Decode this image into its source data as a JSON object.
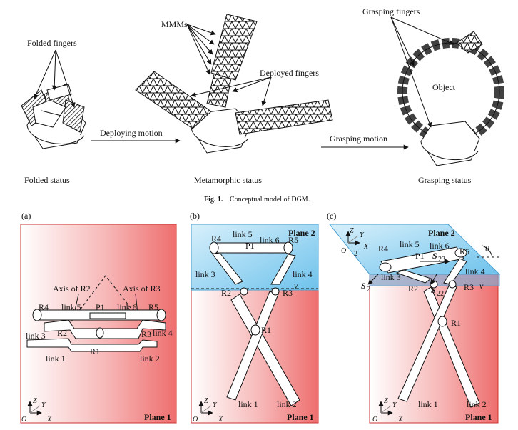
{
  "top": {
    "folded_fingers": "Folded fingers",
    "mmms": "MMMs",
    "deployed_fingers": "Deployed fingers",
    "grasping_fingers": "Grasping fingers",
    "object": "Object",
    "deploying_motion": "Deploying motion",
    "grasping_motion": "Grasping motion",
    "folded_status": "Folded status",
    "metamorphic_status": "Metamorphic status",
    "grasping_status": "Grasping status"
  },
  "caption": {
    "fig": "Fig. 1.",
    "text": "Conceptual model of DGM."
  },
  "panel_a": {
    "tag": "(a)",
    "axis_r2": "Axis of R2",
    "axis_r3": "Axis of R3",
    "r4": "R4",
    "link5": "link 5",
    "p1": "P1",
    "link6": "link 6",
    "r5": "R5",
    "link3": "link 3",
    "r2": "R2",
    "r3": "R3",
    "link4": "link 4",
    "r1": "R1",
    "link1": "link 1",
    "link2": "link 2",
    "z1": "Z",
    "y1": "Y",
    "o1": "O",
    "x1": "X",
    "sub1": "1",
    "plane": "Plane 1"
  },
  "panel_b": {
    "tag": "(b)",
    "link5": "link 5",
    "plane2": "Plane 2",
    "r4": "R4",
    "p1": "P1",
    "link6": "link 6",
    "r5": "R5",
    "link3": "link 3",
    "link4": "link 4",
    "r2": "R2",
    "r3": "R3",
    "v": "v",
    "r1": "R1",
    "link1": "link 1",
    "link2": "link 2",
    "z1": "Z",
    "y1": "Y",
    "o1": "O",
    "x1": "X",
    "sub1": "1",
    "plane1": "Plane 1"
  },
  "panel_c": {
    "tag": "(c)",
    "z2": "Z",
    "y2": "Y",
    "o2": "O",
    "x2": "X",
    "sub2": "2",
    "r4": "R4",
    "link5": "link 5",
    "link6": "link 6",
    "plane2": "Plane 2",
    "p1": "P1",
    "r5": "R5",
    "theta": "θ",
    "s23": "S",
    "s23sub": "23",
    "link3": "link 3",
    "link4": "link 4",
    "s2": "S",
    "s2sub": "2",
    "r2": "R2",
    "s22": "S",
    "s22sub": "22",
    "r3": "R3",
    "v": "v",
    "r1": "R1",
    "link1": "link 1",
    "link2": "link 2",
    "z1": "Z",
    "y1": "Y",
    "o1": "O",
    "x1": "X",
    "sub1": "1",
    "plane1": "Plane 1"
  },
  "colors": {
    "plane1": "#f08080",
    "plane2": "#7fc8ee"
  }
}
